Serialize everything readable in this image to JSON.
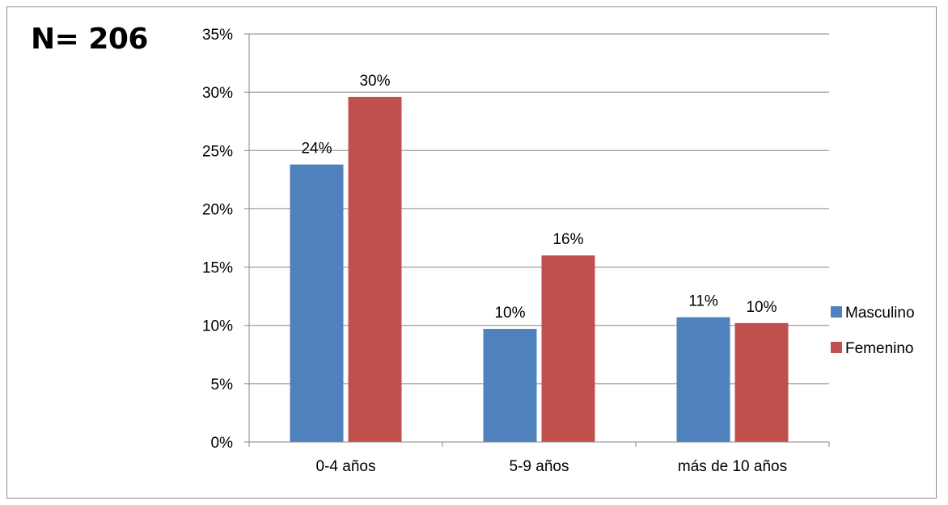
{
  "annotation": "N= 206",
  "chart_data": {
    "type": "bar",
    "categories": [
      "0-4 años",
      "5-9 años",
      "más de 10 años"
    ],
    "series": [
      {
        "name": "Masculino",
        "values": [
          23.8,
          9.7,
          10.7
        ],
        "labels": [
          "24%",
          "10%",
          "11%"
        ],
        "color": "#4f81bd"
      },
      {
        "name": "Femenino",
        "values": [
          29.6,
          16.0,
          10.2
        ],
        "labels": [
          "30%",
          "16%",
          "10%"
        ],
        "color": "#c0504d"
      }
    ],
    "yticks": [
      "0%",
      "5%",
      "10%",
      "15%",
      "20%",
      "25%",
      "30%",
      "35%"
    ],
    "ylim": [
      0,
      35
    ],
    "grid": true,
    "legend_position": "right"
  }
}
